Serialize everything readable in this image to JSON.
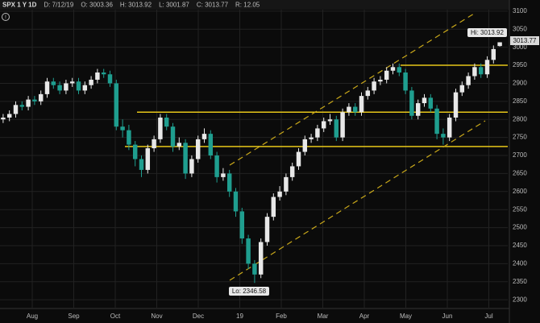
{
  "chart_data": {
    "type": "candlestick",
    "header": [
      "SPX 1 Y 1D",
      "D: 7/12/19",
      "O: 3003.36",
      "H: 3013.92",
      "L: 3001.87",
      "C: 3013.77",
      "R: 12.05"
    ],
    "hi_label": "Hi: 3013.92",
    "last_label": "3013.77",
    "lo_label": "Lo: 2346.58",
    "xticks": [
      "Aug",
      "Sep",
      "Oct",
      "Nov",
      "Dec",
      "19",
      "Feb",
      "Mar",
      "Apr",
      "May",
      "Jun",
      "Jul"
    ],
    "ylim": [
      2278,
      3131
    ],
    "yticks": [
      2300,
      2350,
      2400,
      2450,
      2500,
      2550,
      2600,
      2650,
      2700,
      2750,
      2800,
      2850,
      2900,
      2950,
      3000,
      3050,
      3100
    ],
    "levels": [
      2950,
      2820,
      2725
    ],
    "level_color": "#e6c619",
    "up_color": "#e8e8e8",
    "down_color": "#1f9e8f",
    "grid": true,
    "open": [
      2800,
      2805,
      2815,
      2840,
      2835,
      2855,
      2850,
      2870,
      2905,
      2895,
      2880,
      2900,
      2905,
      2880,
      2895,
      2910,
      2930,
      2925,
      2900,
      2780,
      2770,
      2730,
      2690,
      2660,
      2720,
      2745,
      2805,
      2780,
      2725,
      2735,
      2650,
      2690,
      2745,
      2760,
      2700,
      2640,
      2650,
      2600,
      2545,
      2470,
      2400,
      2370,
      2460,
      2530,
      2585,
      2600,
      2640,
      2670,
      2710,
      2745,
      2750,
      2775,
      2795,
      2800,
      2750,
      2820,
      2835,
      2820,
      2865,
      2880,
      2905,
      2910,
      2935,
      2945,
      2930,
      2880,
      2810,
      2845,
      2860,
      2830,
      2760,
      2750,
      2805,
      2875,
      2895,
      2920,
      2945,
      2925,
      2965,
      3003.36
    ],
    "high": [
      2815,
      2825,
      2850,
      2850,
      2865,
      2865,
      2880,
      2915,
      2915,
      2905,
      2910,
      2915,
      2915,
      2905,
      2920,
      2940,
      2940,
      2935,
      2910,
      2800,
      2785,
      2740,
      2700,
      2730,
      2755,
      2815,
      2815,
      2790,
      2750,
      2745,
      2700,
      2755,
      2775,
      2770,
      2710,
      2665,
      2660,
      2610,
      2555,
      2480,
      2410,
      2470,
      2540,
      2595,
      2615,
      2650,
      2680,
      2720,
      2755,
      2760,
      2785,
      2805,
      2815,
      2810,
      2830,
      2845,
      2845,
      2875,
      2890,
      2915,
      2920,
      2945,
      2955,
      2955,
      2940,
      2890,
      2855,
      2870,
      2870,
      2840,
      2775,
      2815,
      2885,
      2905,
      2930,
      2955,
      2955,
      2975,
      3005,
      3013.92
    ],
    "low": [
      2790,
      2795,
      2805,
      2825,
      2825,
      2840,
      2840,
      2860,
      2885,
      2870,
      2870,
      2890,
      2870,
      2870,
      2885,
      2900,
      2915,
      2890,
      2770,
      2750,
      2715,
      2670,
      2640,
      2650,
      2710,
      2735,
      2770,
      2710,
      2715,
      2635,
      2640,
      2680,
      2735,
      2690,
      2625,
      2630,
      2585,
      2530,
      2455,
      2385,
      2346.58,
      2360,
      2450,
      2520,
      2575,
      2590,
      2630,
      2660,
      2700,
      2735,
      2740,
      2765,
      2785,
      2740,
      2740,
      2810,
      2810,
      2810,
      2855,
      2870,
      2895,
      2900,
      2925,
      2920,
      2870,
      2800,
      2800,
      2835,
      2820,
      2745,
      2730,
      2740,
      2795,
      2865,
      2885,
      2910,
      2915,
      2915,
      2955,
      3001.87
    ],
    "close": [
      2805,
      2815,
      2840,
      2835,
      2855,
      2850,
      2870,
      2905,
      2895,
      2880,
      2900,
      2905,
      2880,
      2895,
      2910,
      2930,
      2925,
      2900,
      2780,
      2770,
      2730,
      2690,
      2660,
      2720,
      2745,
      2805,
      2780,
      2725,
      2735,
      2650,
      2690,
      2745,
      2760,
      2700,
      2640,
      2650,
      2600,
      2545,
      2470,
      2400,
      2370,
      2460,
      2530,
      2585,
      2600,
      2640,
      2670,
      2710,
      2745,
      2750,
      2775,
      2795,
      2800,
      2750,
      2820,
      2835,
      2820,
      2865,
      2880,
      2905,
      2910,
      2935,
      2945,
      2930,
      2880,
      2810,
      2845,
      2860,
      2830,
      2760,
      2750,
      2805,
      2875,
      2895,
      2920,
      2945,
      2925,
      2965,
      2995,
      3013.77
    ]
  }
}
